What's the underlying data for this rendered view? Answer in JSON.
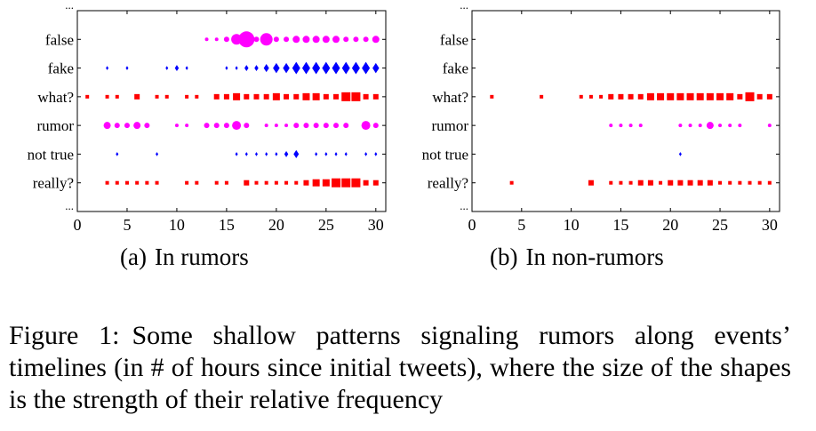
{
  "chart_data": [
    {
      "type": "scatter",
      "panel_label": "(a)",
      "caption": "In rumors",
      "y_categories": [
        "...",
        "false",
        "fake",
        "what?",
        "rumor",
        "not true",
        "really?",
        "..."
      ],
      "xlim": [
        0,
        31
      ],
      "xticks": [
        0,
        5,
        10,
        15,
        20,
        25,
        30
      ],
      "series": [
        {
          "category": "false",
          "marker": "circle",
          "color": "#ff00ff",
          "points": [
            [
              13,
              2
            ],
            [
              14,
              2
            ],
            [
              15,
              3
            ],
            [
              16,
              6
            ],
            [
              17,
              9
            ],
            [
              18,
              3
            ],
            [
              19,
              7
            ],
            [
              20,
              3
            ],
            [
              21,
              3
            ],
            [
              22,
              4
            ],
            [
              23,
              4
            ],
            [
              24,
              4
            ],
            [
              25,
              4
            ],
            [
              26,
              4
            ],
            [
              27,
              3
            ],
            [
              28,
              3
            ],
            [
              29,
              3
            ],
            [
              30,
              4
            ]
          ]
        },
        {
          "category": "fake",
          "marker": "diamond",
          "color": "#0000ff",
          "points": [
            [
              3,
              2
            ],
            [
              5,
              2
            ],
            [
              9,
              2
            ],
            [
              10,
              3
            ],
            [
              11,
              2
            ],
            [
              15,
              2
            ],
            [
              16,
              2
            ],
            [
              17,
              3
            ],
            [
              18,
              3
            ],
            [
              19,
              4
            ],
            [
              20,
              5
            ],
            [
              21,
              5
            ],
            [
              22,
              6
            ],
            [
              23,
              6
            ],
            [
              24,
              6
            ],
            [
              25,
              6
            ],
            [
              26,
              6
            ],
            [
              27,
              6
            ],
            [
              28,
              6
            ],
            [
              29,
              6
            ],
            [
              30,
              5
            ]
          ]
        },
        {
          "category": "what?",
          "marker": "square",
          "color": "#ff0000",
          "points": [
            [
              1,
              2
            ],
            [
              3,
              2
            ],
            [
              4,
              2
            ],
            [
              6,
              3
            ],
            [
              8,
              2
            ],
            [
              9,
              2
            ],
            [
              11,
              2
            ],
            [
              12,
              2
            ],
            [
              14,
              3
            ],
            [
              15,
              3
            ],
            [
              16,
              4
            ],
            [
              17,
              3
            ],
            [
              18,
              3
            ],
            [
              19,
              3
            ],
            [
              20,
              4
            ],
            [
              21,
              3
            ],
            [
              22,
              3
            ],
            [
              23,
              4
            ],
            [
              24,
              4
            ],
            [
              25,
              3
            ],
            [
              26,
              3
            ],
            [
              27,
              5
            ],
            [
              28,
              5
            ],
            [
              29,
              3
            ],
            [
              30,
              3
            ]
          ]
        },
        {
          "category": "rumor",
          "marker": "circle",
          "color": "#ff00ff",
          "points": [
            [
              3,
              4
            ],
            [
              4,
              3
            ],
            [
              5,
              3
            ],
            [
              6,
              4
            ],
            [
              7,
              3
            ],
            [
              10,
              2
            ],
            [
              11,
              2
            ],
            [
              13,
              3
            ],
            [
              14,
              3
            ],
            [
              15,
              3
            ],
            [
              16,
              5
            ],
            [
              17,
              3
            ],
            [
              19,
              2
            ],
            [
              20,
              2
            ],
            [
              21,
              2
            ],
            [
              22,
              3
            ],
            [
              23,
              3
            ],
            [
              24,
              3
            ],
            [
              25,
              3
            ],
            [
              26,
              3
            ],
            [
              27,
              3
            ],
            [
              29,
              5
            ],
            [
              30,
              3
            ]
          ]
        },
        {
          "category": "not true",
          "marker": "diamond",
          "color": "#0000ff",
          "points": [
            [
              4,
              2
            ],
            [
              8,
              2
            ],
            [
              16,
              2
            ],
            [
              17,
              2
            ],
            [
              18,
              2
            ],
            [
              19,
              2
            ],
            [
              20,
              2
            ],
            [
              21,
              3
            ],
            [
              22,
              4
            ],
            [
              24,
              2
            ],
            [
              25,
              2
            ],
            [
              26,
              2
            ],
            [
              27,
              2
            ],
            [
              29,
              2
            ],
            [
              30,
              2
            ]
          ]
        },
        {
          "category": "really?",
          "marker": "square",
          "color": "#ff0000",
          "points": [
            [
              3,
              2
            ],
            [
              4,
              2
            ],
            [
              5,
              2
            ],
            [
              6,
              2
            ],
            [
              7,
              2
            ],
            [
              8,
              2
            ],
            [
              11,
              2
            ],
            [
              12,
              2
            ],
            [
              14,
              2
            ],
            [
              15,
              2
            ],
            [
              17,
              3
            ],
            [
              18,
              2
            ],
            [
              19,
              2
            ],
            [
              20,
              2
            ],
            [
              21,
              2
            ],
            [
              22,
              2
            ],
            [
              23,
              3
            ],
            [
              24,
              4
            ],
            [
              25,
              4
            ],
            [
              26,
              5
            ],
            [
              27,
              5
            ],
            [
              28,
              5
            ],
            [
              29,
              3
            ],
            [
              30,
              3
            ]
          ]
        }
      ]
    },
    {
      "type": "scatter",
      "panel_label": "(b)",
      "caption": "In non-rumors",
      "y_categories": [
        "...",
        "false",
        "fake",
        "what?",
        "rumor",
        "not true",
        "really?",
        "..."
      ],
      "xlim": [
        0,
        31
      ],
      "xticks": [
        0,
        5,
        10,
        15,
        20,
        25,
        30
      ],
      "series": [
        {
          "category": "false",
          "marker": "circle",
          "color": "#ff00ff",
          "points": []
        },
        {
          "category": "fake",
          "marker": "diamond",
          "color": "#0000ff",
          "points": []
        },
        {
          "category": "what?",
          "marker": "square",
          "color": "#ff0000",
          "points": [
            [
              2,
              2
            ],
            [
              7,
              2
            ],
            [
              11,
              2
            ],
            [
              12,
              2
            ],
            [
              13,
              2
            ],
            [
              14,
              3
            ],
            [
              15,
              3
            ],
            [
              16,
              3
            ],
            [
              17,
              3
            ],
            [
              18,
              4
            ],
            [
              19,
              4
            ],
            [
              20,
              4
            ],
            [
              21,
              4
            ],
            [
              22,
              4
            ],
            [
              23,
              4
            ],
            [
              24,
              4
            ],
            [
              25,
              4
            ],
            [
              26,
              4
            ],
            [
              27,
              3
            ],
            [
              28,
              5
            ],
            [
              29,
              3
            ],
            [
              30,
              3
            ]
          ]
        },
        {
          "category": "rumor",
          "marker": "circle",
          "color": "#ff00ff",
          "points": [
            [
              14,
              2
            ],
            [
              15,
              2
            ],
            [
              16,
              2
            ],
            [
              17,
              2
            ],
            [
              21,
              2
            ],
            [
              22,
              2
            ],
            [
              23,
              2
            ],
            [
              24,
              4
            ],
            [
              25,
              2
            ],
            [
              26,
              2
            ],
            [
              27,
              2
            ],
            [
              30,
              2
            ]
          ]
        },
        {
          "category": "not true",
          "marker": "diamond",
          "color": "#0000ff",
          "points": [
            [
              21,
              2
            ]
          ]
        },
        {
          "category": "really?",
          "marker": "square",
          "color": "#ff0000",
          "points": [
            [
              4,
              2
            ],
            [
              12,
              3
            ],
            [
              14,
              2
            ],
            [
              15,
              2
            ],
            [
              16,
              2
            ],
            [
              17,
              3
            ],
            [
              18,
              3
            ],
            [
              19,
              2
            ],
            [
              20,
              3
            ],
            [
              21,
              3
            ],
            [
              22,
              3
            ],
            [
              23,
              3
            ],
            [
              24,
              3
            ],
            [
              25,
              2
            ],
            [
              26,
              2
            ],
            [
              27,
              2
            ],
            [
              28,
              2
            ],
            [
              29,
              2
            ],
            [
              30,
              2
            ]
          ]
        }
      ]
    }
  ],
  "figure": {
    "label": "Figure 1:",
    "caption": "Some shallow patterns signaling rumors along events’ timelines (in # of hours since initial tweets), where the size of the shapes is the strength of their relative frequency"
  }
}
